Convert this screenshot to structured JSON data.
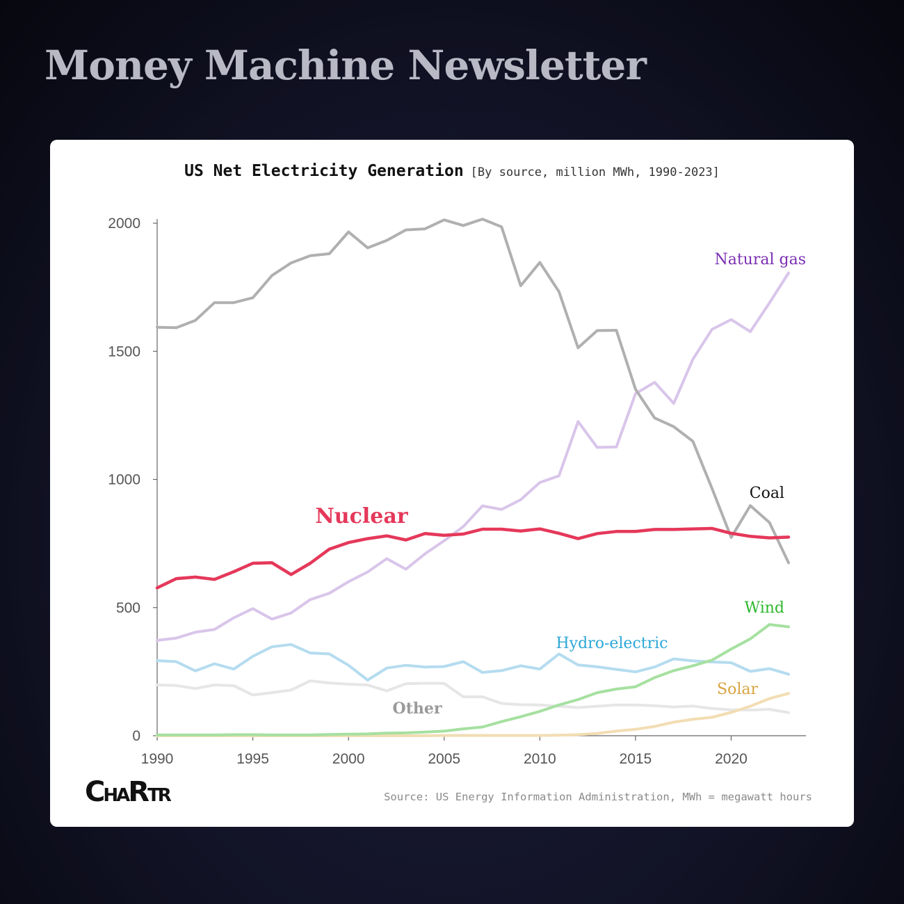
{
  "header": {
    "title": "Money Machine Newsletter"
  },
  "chart_data": {
    "type": "line",
    "title": "US Net Electricity Generation",
    "subtitle": "[By source, million MWh, 1990-2023]",
    "xlim": [
      1990,
      2023
    ],
    "ylim": [
      0,
      2000
    ],
    "x_ticks": [
      1990,
      1995,
      2000,
      2005,
      2010,
      2015,
      2020
    ],
    "y_ticks": [
      0,
      500,
      1000,
      1500,
      2000
    ],
    "grid": false,
    "x": [
      1990,
      1991,
      1992,
      1993,
      1994,
      1995,
      1996,
      1997,
      1998,
      1999,
      2000,
      2001,
      2002,
      2003,
      2004,
      2005,
      2006,
      2007,
      2008,
      2009,
      2010,
      2011,
      2012,
      2013,
      2014,
      2015,
      2016,
      2017,
      2018,
      2019,
      2020,
      2021,
      2022,
      2023
    ],
    "series": [
      {
        "name": "Coal",
        "color": "#b0b0b0",
        "label_color": "#111111",
        "width": 4,
        "values": [
          1594,
          1592,
          1621,
          1690,
          1690,
          1709,
          1796,
          1845,
          1873,
          1881,
          1966,
          1904,
          1933,
          1974,
          1978,
          2013,
          1991,
          2016,
          1986,
          1756,
          1847,
          1733,
          1514,
          1581,
          1582,
          1352,
          1240,
          1206,
          1149,
          965,
          774,
          898,
          832,
          675
        ]
      },
      {
        "name": "Natural gas",
        "color": "#d9c5ea",
        "label_color": "#7a2fb3",
        "width": 4,
        "values": [
          372,
          381,
          404,
          415,
          460,
          496,
          455,
          479,
          531,
          556,
          601,
          639,
          691,
          650,
          710,
          761,
          816,
          897,
          883,
          921,
          988,
          1014,
          1226,
          1125,
          1127,
          1335,
          1379,
          1297,
          1469,
          1586,
          1624,
          1577,
          1689,
          1806
        ]
      },
      {
        "name": "Nuclear",
        "color": "#e5385a",
        "label_color": "#e5385a",
        "width": 4.5,
        "values": [
          577,
          613,
          619,
          610,
          640,
          673,
          675,
          629,
          673,
          728,
          754,
          769,
          780,
          764,
          789,
          782,
          787,
          806,
          806,
          799,
          807,
          790,
          769,
          789,
          797,
          797,
          805,
          805,
          807,
          809,
          790,
          778,
          772,
          775
        ]
      },
      {
        "name": "Hydro-electric",
        "color": "#b5dcef",
        "label_color": "#2aa7d6",
        "width": 4,
        "values": [
          293,
          289,
          253,
          281,
          260,
          310,
          347,
          356,
          323,
          319,
          275,
          217,
          264,
          275,
          268,
          270,
          289,
          247,
          254,
          273,
          260,
          319,
          276,
          269,
          259,
          249,
          268,
          300,
          292,
          288,
          285,
          251,
          262,
          240
        ]
      },
      {
        "name": "Other",
        "color": "#e6e6e6",
        "label_color": "#9a9a9a",
        "width": 4,
        "values": [
          198,
          196,
          184,
          198,
          195,
          159,
          168,
          178,
          214,
          206,
          201,
          198,
          175,
          203,
          205,
          204,
          152,
          152,
          126,
          121,
          120,
          115,
          110,
          115,
          120,
          120,
          117,
          112,
          116,
          106,
          101,
          100,
          103,
          90
        ]
      },
      {
        "name": "Wind",
        "color": "#a6e0a0",
        "label_color": "#2eb82e",
        "width": 4,
        "values": [
          3,
          3,
          3,
          3,
          4,
          4,
          3,
          3,
          3,
          5,
          6,
          7,
          10,
          11,
          14,
          18,
          27,
          34,
          55,
          74,
          95,
          120,
          141,
          168,
          182,
          191,
          227,
          254,
          273,
          295,
          338,
          378,
          434,
          425
        ]
      },
      {
        "name": "Solar",
        "color": "#f2ddb3",
        "label_color": "#d9a441",
        "width": 4,
        "values": [
          0,
          0,
          0,
          0,
          0,
          0,
          0,
          0,
          0,
          0,
          0,
          0,
          0,
          0,
          0,
          1,
          1,
          1,
          1,
          1,
          1,
          2,
          4,
          9,
          18,
          25,
          36,
          53,
          64,
          72,
          91,
          115,
          145,
          165
        ]
      }
    ],
    "source": "Source: US Energy Information Administration, MWh = megawatt hours"
  },
  "logo": {
    "big1": "C",
    "small1": "HA",
    "big2": "R",
    "small2": "TR"
  }
}
